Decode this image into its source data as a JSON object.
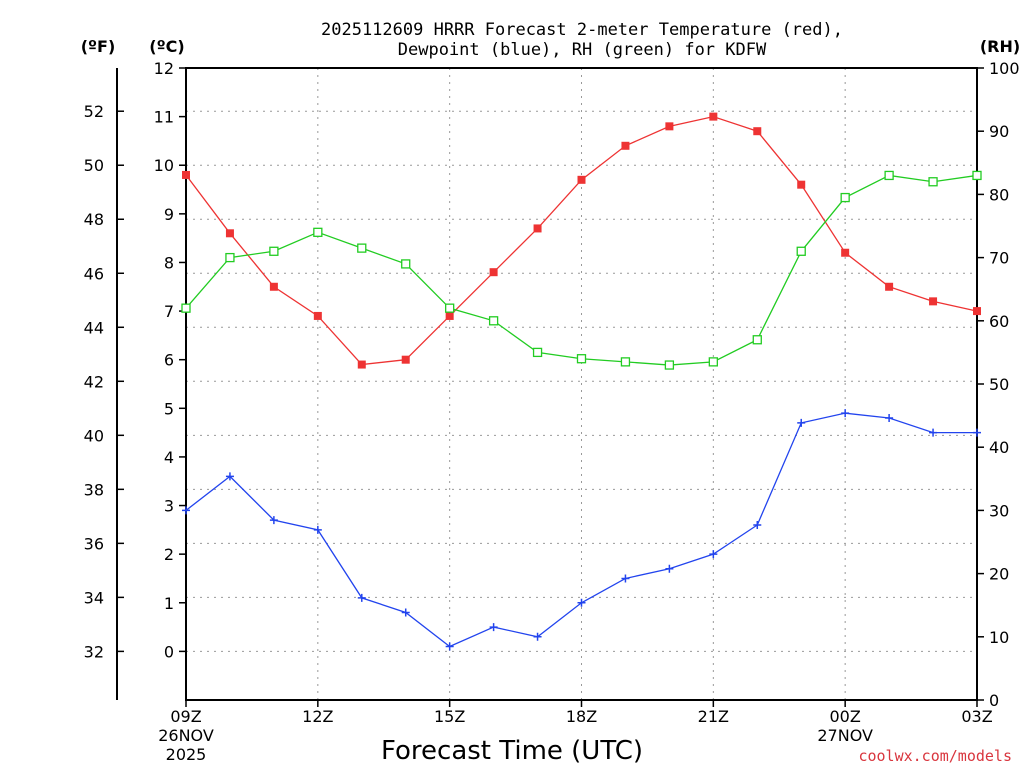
{
  "chart_data": {
    "type": "line",
    "title_line1": "2025112609 HRRR Forecast 2-meter Temperature (red),",
    "title_line2": "Dewpoint (blue), RH (green) for KDFW",
    "xlabel": "Forecast Time (UTC)",
    "unit_f": "(ºF)",
    "unit_c": "(ºC)",
    "unit_rh": "(RH)",
    "credit": "coolwx.com/models",
    "x_hours": [
      0,
      1,
      2,
      3,
      4,
      5,
      6,
      7,
      8,
      9,
      10,
      11,
      12,
      13,
      14,
      15,
      16,
      17,
      18
    ],
    "x_ticks": [
      {
        "hour": 0,
        "label": "09Z",
        "sub1": "26NOV",
        "sub2": "2025"
      },
      {
        "hour": 3,
        "label": "12Z",
        "sub1": "",
        "sub2": ""
      },
      {
        "hour": 6,
        "label": "15Z",
        "sub1": "",
        "sub2": ""
      },
      {
        "hour": 9,
        "label": "18Z",
        "sub1": "",
        "sub2": ""
      },
      {
        "hour": 12,
        "label": "21Z",
        "sub1": "",
        "sub2": ""
      },
      {
        "hour": 15,
        "label": "00Z",
        "sub1": "27NOV",
        "sub2": ""
      },
      {
        "hour": 18,
        "label": "03Z",
        "sub1": "",
        "sub2": ""
      }
    ],
    "y_celsius": {
      "min": -1,
      "max": 12,
      "ticks": [
        0,
        1,
        2,
        3,
        4,
        5,
        6,
        7,
        8,
        9,
        10,
        11,
        12
      ]
    },
    "y_fahrenheit": {
      "ticks": [
        32,
        34,
        36,
        38,
        40,
        42,
        44,
        46,
        48,
        50,
        52
      ]
    },
    "y_rh": {
      "min": 0,
      "max": 100,
      "ticks": [
        0,
        10,
        20,
        30,
        40,
        50,
        60,
        70,
        80,
        90,
        100
      ]
    },
    "series": [
      {
        "name": "2-meter Temperature",
        "axis": "celsius",
        "color": "#ee3333",
        "marker": "filled-square",
        "values": [
          9.8,
          8.6,
          7.5,
          6.9,
          5.9,
          6.0,
          6.9,
          7.8,
          8.7,
          9.7,
          10.4,
          10.8,
          11.0,
          10.7,
          9.6,
          8.2,
          7.5,
          7.2,
          7.0
        ]
      },
      {
        "name": "Dewpoint",
        "axis": "celsius",
        "color": "#2244ee",
        "marker": "plus",
        "values": [
          2.9,
          3.6,
          2.7,
          2.5,
          1.1,
          0.8,
          0.1,
          0.5,
          0.3,
          1.0,
          1.5,
          1.7,
          2.0,
          2.6,
          4.7,
          4.9,
          4.8,
          4.5,
          4.5
        ]
      },
      {
        "name": "Relative Humidity",
        "axis": "rh",
        "color": "#22cc22",
        "marker": "open-square",
        "values": [
          62,
          70,
          71,
          74,
          71.5,
          69,
          62,
          60,
          55,
          54,
          53.5,
          53,
          53.5,
          57,
          71,
          79.5,
          83,
          82,
          83
        ]
      }
    ]
  }
}
